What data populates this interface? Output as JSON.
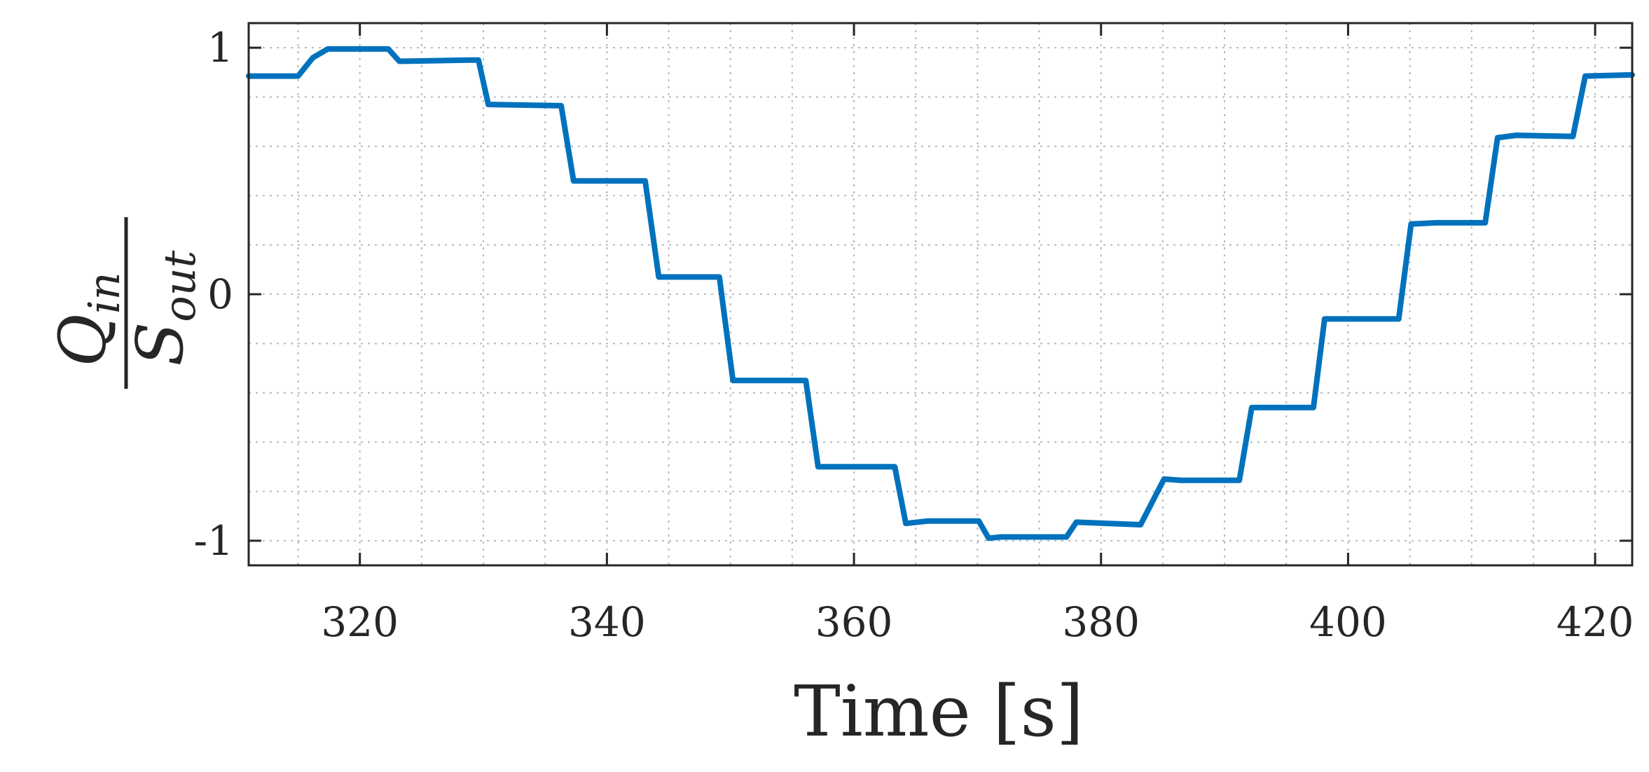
{
  "chart_data": {
    "type": "line",
    "title": "",
    "xlabel": "Time [s]",
    "ylabel": {
      "numerator": "Q",
      "numerator_sub": "in",
      "denominator": "S",
      "denominator_sub": "out"
    },
    "xlim": [
      311,
      423
    ],
    "ylim": [
      -1.1,
      1.1
    ],
    "xticks": [
      320,
      340,
      360,
      380,
      400,
      420
    ],
    "xtick_labels": [
      "320",
      "340",
      "360",
      "380",
      "400",
      "420"
    ],
    "yticks": [
      -1,
      0,
      1
    ],
    "ytick_labels": [
      "-1",
      "0",
      "1"
    ],
    "x_minor_step": 5,
    "y_minor_step": 0.2,
    "grid": true,
    "legend": "none",
    "series": [
      {
        "color": "#0072BD",
        "points": [
          [
            311,
            0.885
          ],
          [
            315,
            0.885
          ],
          [
            316.2,
            0.96
          ],
          [
            317.4,
            0.995
          ],
          [
            322.3,
            0.995
          ],
          [
            323.2,
            0.945
          ],
          [
            328.8,
            0.95
          ],
          [
            329.6,
            0.95
          ],
          [
            330.4,
            0.77
          ],
          [
            336.3,
            0.765
          ],
          [
            337.3,
            0.46
          ],
          [
            343.1,
            0.46
          ],
          [
            344.2,
            0.07
          ],
          [
            349.1,
            0.07
          ],
          [
            350.2,
            -0.35
          ],
          [
            356.1,
            -0.35
          ],
          [
            357.1,
            -0.7
          ],
          [
            363.3,
            -0.7
          ],
          [
            364.2,
            -0.93
          ],
          [
            366.0,
            -0.92
          ],
          [
            370.1,
            -0.92
          ],
          [
            370.9,
            -0.99
          ],
          [
            371.9,
            -0.985
          ],
          [
            377.2,
            -0.985
          ],
          [
            378.0,
            -0.925
          ],
          [
            383.2,
            -0.935
          ],
          [
            385.1,
            -0.75
          ],
          [
            386.5,
            -0.755
          ],
          [
            391.2,
            -0.755
          ],
          [
            392.2,
            -0.46
          ],
          [
            397.2,
            -0.46
          ],
          [
            398.1,
            -0.1
          ],
          [
            404.1,
            -0.1
          ],
          [
            405.1,
            0.285
          ],
          [
            407.2,
            0.29
          ],
          [
            411.1,
            0.29
          ],
          [
            412.1,
            0.635
          ],
          [
            413.6,
            0.645
          ],
          [
            418.2,
            0.64
          ],
          [
            419.2,
            0.885
          ],
          [
            423,
            0.89
          ]
        ]
      }
    ]
  }
}
